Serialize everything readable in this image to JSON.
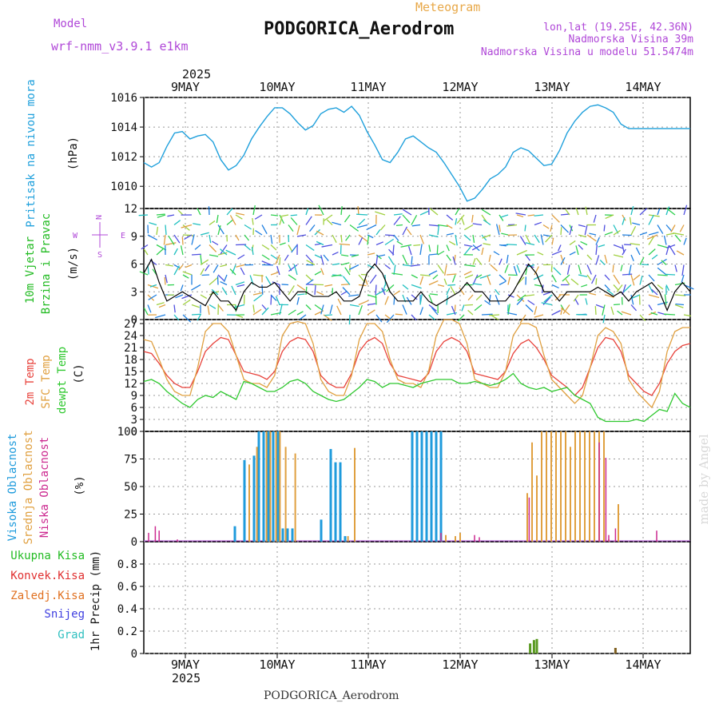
{
  "header": {
    "model_label": "Model",
    "model_name": "wrf-nmm_v3.9.1 e1km",
    "meteogram": "Meteogram",
    "station": "PODGORICA_Aerodrom",
    "lonlat": "lon,lat (19.25E, 42.36N)",
    "elevation": "Nadmorska Visina 39m",
    "model_elevation": "Nadmorska Visina u modelu 51.5474m",
    "footer_station": "PODGORICA_Aerodrom",
    "credit": "made by Angel"
  },
  "time_axis": {
    "year": "2025",
    "ticks": [
      "9MAY",
      "10MAY",
      "11MAY",
      "12MAY",
      "13MAY",
      "14MAY"
    ]
  },
  "panel_labels": {
    "pressure": {
      "title": "Pritisak na nivou mora",
      "unit": "(hPa)"
    },
    "wind": {
      "title1": "10m Vjetar",
      "title2": "Brzina i Pravac",
      "unit": "(m/s)",
      "compass": {
        "n": "N",
        "e": "E",
        "w": "W",
        "s": "S"
      }
    },
    "temp": {
      "t2m": "2m Temp",
      "sfc": "SFC Temp",
      "dew": "dewpt Temp",
      "unit": "(C)"
    },
    "cloud": {
      "high": "Visoka Oblacnost",
      "mid": "Srednja Oblacnost",
      "low": "Niska Oblacnost",
      "unit": "(%)"
    },
    "precip": {
      "total": "Ukupna Kisa",
      "conv": "Konvek.Kisa",
      "frz": "Zaledj.Kisa",
      "snow": "Snijeg",
      "grad": "Grad",
      "unit": "1hr Precip (mm)"
    }
  },
  "colors": {
    "pressure": "#1fa0dc",
    "t2m": "#e8433c",
    "sfc": "#e0a040",
    "dew": "#2fc82f",
    "high": "#1f9bdc",
    "mid": "#e0a040",
    "low": "#cc2a90",
    "total": "#22bb22",
    "conv": "#e03030",
    "frz": "#e07020",
    "snow": "#4040e0",
    "grad": "#30c0c0",
    "purple": "#b048d8",
    "orange": "#e8a848"
  },
  "chart_data": [
    {
      "type": "line",
      "panel": "pressure",
      "ylabel": "(hPa)",
      "ylim": [
        1008.5,
        1016
      ],
      "yticks": [
        1010,
        1012,
        1014,
        1016
      ],
      "x": [
        0,
        2,
        4,
        6,
        8,
        10,
        12,
        14,
        16,
        18,
        20,
        22,
        24,
        26,
        28,
        30,
        32,
        34,
        36,
        38,
        40,
        42,
        44,
        46,
        48,
        50,
        52,
        54,
        56,
        58,
        60,
        62,
        64,
        66,
        68,
        70,
        72,
        74,
        76,
        78,
        80,
        82,
        84,
        86,
        88,
        90,
        92,
        94,
        96,
        98,
        100,
        102,
        104,
        106,
        108,
        110,
        112,
        114,
        116,
        118,
        120,
        122,
        124,
        126,
        128,
        130,
        132,
        134,
        136,
        138,
        140,
        142
      ],
      "series": [
        {
          "values": [
            1011.6,
            1011.3,
            1011.6,
            1012.7,
            1013.6,
            1013.7,
            1013.2,
            1013.4,
            1013.5,
            1013.0,
            1011.8,
            1011.1,
            1011.4,
            1012.1,
            1013.2,
            1014.0,
            1014.7,
            1015.3,
            1015.3,
            1014.9,
            1014.3,
            1013.8,
            1014.1,
            1014.9,
            1015.2,
            1015.3,
            1015.0,
            1015.4,
            1014.8,
            1013.7,
            1012.8,
            1011.8,
            1011.6,
            1012.3,
            1013.2,
            1013.4,
            1013.0,
            1012.6,
            1012.3,
            1011.6,
            1010.8,
            1010.0,
            1009.0,
            1009.2,
            1009.8,
            1010.5,
            1010.8,
            1011.3,
            1012.3,
            1012.6,
            1012.4,
            1011.9,
            1011.4,
            1011.5,
            1012.4,
            1013.6,
            1014.4,
            1015.0,
            1015.4,
            1015.5,
            1015.3,
            1015.0,
            1014.2,
            1013.9,
            1013.9,
            1013.9,
            1013.9,
            1013.9,
            1013.9,
            1013.9,
            1013.9,
            1013.9
          ]
        }
      ]
    },
    {
      "type": "line",
      "panel": "wind",
      "ylabel": "(m/s)",
      "ylim": [
        0,
        12
      ],
      "yticks": [
        0,
        3,
        6,
        9,
        12
      ],
      "x": [
        0,
        2,
        4,
        6,
        8,
        10,
        12,
        14,
        16,
        18,
        20,
        22,
        24,
        26,
        28,
        30,
        32,
        34,
        36,
        38,
        40,
        42,
        44,
        46,
        48,
        50,
        52,
        54,
        56,
        58,
        60,
        62,
        64,
        66,
        68,
        70,
        72,
        74,
        76,
        78,
        80,
        82,
        84,
        86,
        88,
        90,
        92,
        94,
        96,
        98,
        100,
        102,
        104,
        106,
        108,
        110,
        112,
        114,
        116,
        118,
        120,
        122,
        124,
        126,
        128,
        130,
        132,
        134,
        136,
        138,
        140,
        142
      ],
      "series": [
        {
          "name": "wind speed",
          "values": [
            5,
            6.5,
            4,
            2,
            2.5,
            3,
            2.5,
            2,
            1.5,
            3,
            2,
            2,
            1,
            3,
            4,
            3.5,
            3.5,
            4,
            3,
            2,
            3,
            3,
            2.5,
            2.5,
            2.5,
            3,
            2,
            2,
            2.5,
            5,
            6,
            5,
            3,
            2,
            2,
            2,
            3,
            2,
            1.5,
            2,
            2.5,
            3,
            4,
            3,
            3,
            2,
            2,
            2,
            3,
            4.5,
            6,
            5,
            3,
            3,
            2,
            3,
            3,
            3,
            3,
            3.5,
            3,
            2.5,
            3,
            2,
            3,
            3.5,
            4,
            3,
            1,
            3,
            4,
            3
          ]
        }
      ]
    },
    {
      "type": "line",
      "panel": "temperature",
      "ylabel": "(C)",
      "ylim": [
        0,
        28
      ],
      "yticks": [
        0,
        3,
        6,
        9,
        12,
        15,
        18,
        21,
        24,
        27
      ],
      "x": [
        0,
        2,
        4,
        6,
        8,
        10,
        12,
        14,
        16,
        18,
        20,
        22,
        24,
        26,
        28,
        30,
        32,
        34,
        36,
        38,
        40,
        42,
        44,
        46,
        48,
        50,
        52,
        54,
        56,
        58,
        60,
        62,
        64,
        66,
        68,
        70,
        72,
        74,
        76,
        78,
        80,
        82,
        84,
        86,
        88,
        90,
        92,
        94,
        96,
        98,
        100,
        102,
        104,
        106,
        108,
        110,
        112,
        114,
        116,
        118,
        120,
        122,
        124,
        126,
        128,
        130,
        132,
        134,
        136,
        138,
        140,
        142
      ],
      "series": [
        {
          "name": "2m Temp",
          "values": [
            20,
            19.5,
            17,
            14,
            12,
            11,
            11,
            15,
            20,
            22,
            23.5,
            23,
            19,
            15,
            14.5,
            14,
            13,
            15,
            20,
            22.5,
            23.5,
            23,
            20,
            14,
            12,
            11,
            11,
            14.5,
            20,
            22.5,
            23.5,
            22,
            17,
            14,
            13.5,
            13,
            12.5,
            14.5,
            20,
            22.5,
            23.5,
            22.5,
            20,
            14.5,
            14,
            13.5,
            13,
            15,
            19.5,
            22,
            23,
            21,
            18,
            14,
            12.5,
            11,
            9,
            11,
            16,
            21,
            23.5,
            23,
            20,
            14,
            12,
            10,
            9,
            12,
            17,
            20,
            21.5,
            22
          ]
        },
        {
          "name": "SFC Temp",
          "values": [
            23,
            22.5,
            18,
            13,
            10,
            9,
            9,
            16,
            25,
            27,
            27,
            25,
            19,
            13,
            12,
            12,
            11,
            14,
            24,
            27,
            27.5,
            27,
            22,
            13,
            10,
            9,
            9,
            14,
            23,
            27,
            27,
            25,
            18,
            13,
            12,
            12,
            11,
            15,
            24,
            28,
            28,
            27,
            22,
            13,
            12,
            11,
            11,
            15,
            24,
            27,
            27,
            26,
            19,
            13,
            11,
            9,
            7,
            9,
            16,
            24,
            26,
            25,
            22,
            13,
            10,
            8,
            6,
            10,
            20,
            25,
            26,
            26
          ]
        },
        {
          "name": "dewpt Temp",
          "values": [
            12.5,
            13,
            12,
            10,
            8.5,
            7,
            6,
            8,
            9,
            8.5,
            10,
            9,
            8,
            12.5,
            12,
            11,
            10,
            10,
            11,
            12.5,
            13,
            12,
            10,
            9,
            8,
            7.5,
            8,
            9.5,
            11,
            13,
            12.5,
            11,
            12,
            12,
            11.5,
            11,
            12,
            12.5,
            13,
            13,
            13,
            12,
            12,
            12.5,
            12,
            11.5,
            12,
            13,
            14.5,
            12,
            11,
            10.5,
            11,
            10,
            10.5,
            11,
            9,
            8,
            7,
            3.5,
            2.5,
            2.5,
            2.5,
            2.5,
            3,
            2.5,
            4,
            5.5,
            5,
            9.5,
            7,
            6
          ]
        }
      ]
    },
    {
      "type": "bar",
      "panel": "cloud",
      "ylabel": "(%)",
      "ylim": [
        0,
        100
      ],
      "yticks": [
        0,
        25,
        50,
        75,
        100
      ],
      "series": [
        {
          "name": "Visoka Oblacnost",
          "bars": [
            [
              9.5,
              14
            ],
            [
              10.5,
              74
            ],
            [
              11.5,
              78
            ],
            [
              12,
              100
            ],
            [
              12.5,
              100
            ],
            [
              13,
              100
            ],
            [
              13.5,
              100
            ],
            [
              14,
              100
            ],
            [
              14.5,
              12
            ],
            [
              15,
              12
            ],
            [
              15.5,
              12
            ],
            [
              18.5,
              20
            ],
            [
              19.5,
              84
            ],
            [
              20,
              72
            ],
            [
              20.5,
              72
            ],
            [
              21,
              5
            ],
            [
              28,
              100
            ],
            [
              28.5,
              100
            ],
            [
              29,
              100
            ],
            [
              29.5,
              100
            ],
            [
              30,
              100
            ],
            [
              30.5,
              100
            ],
            [
              31,
              100
            ]
          ]
        },
        {
          "name": "Srednja Oblacnost",
          "bars": [
            [
              11,
              70
            ],
            [
              11.8,
              86
            ],
            [
              12.8,
              100
            ],
            [
              13.2,
              100
            ],
            [
              13.8,
              100
            ],
            [
              14.2,
              100
            ],
            [
              14.8,
              86
            ],
            [
              15.8,
              80
            ],
            [
              21.3,
              5
            ],
            [
              22,
              85
            ],
            [
              31.5,
              6
            ],
            [
              32.5,
              5
            ],
            [
              33,
              8
            ],
            [
              40,
              44
            ],
            [
              40.5,
              90
            ],
            [
              41,
              60
            ],
            [
              41.5,
              100
            ],
            [
              42,
              100
            ],
            [
              42.5,
              100
            ],
            [
              43,
              100
            ],
            [
              43.5,
              100
            ],
            [
              44,
              100
            ],
            [
              44.5,
              86
            ],
            [
              45,
              100
            ],
            [
              45.5,
              100
            ],
            [
              46,
              100
            ],
            [
              46.5,
              100
            ],
            [
              47,
              100
            ],
            [
              47.5,
              100
            ],
            [
              48,
              100
            ],
            [
              48.5,
              2
            ],
            [
              49.5,
              34
            ]
          ]
        },
        {
          "name": "Niska Oblacnost",
          "bars": [
            [
              0.5,
              8
            ],
            [
              1.2,
              14
            ],
            [
              1.6,
              10
            ],
            [
              3.5,
              2
            ],
            [
              31,
              8
            ],
            [
              34.5,
              6
            ],
            [
              35,
              4
            ],
            [
              40.2,
              40
            ],
            [
              47.5,
              90
            ],
            [
              48.2,
              76
            ],
            [
              48.5,
              6
            ],
            [
              49.2,
              12
            ],
            [
              53.5,
              10
            ]
          ]
        }
      ]
    },
    {
      "type": "bar",
      "panel": "precipitation",
      "ylabel": "1hr Precip (mm)",
      "ylim": [
        0,
        1
      ],
      "yticks": [
        0,
        0.2,
        0.4,
        0.6,
        0.8
      ],
      "series": [
        {
          "name": "Ukupna Kisa",
          "bars": [
            [
              40.3,
              0.09
            ],
            [
              40.7,
              0.12
            ],
            [
              41,
              0.13
            ],
            [
              49.2,
              0.05
            ]
          ]
        }
      ]
    }
  ]
}
